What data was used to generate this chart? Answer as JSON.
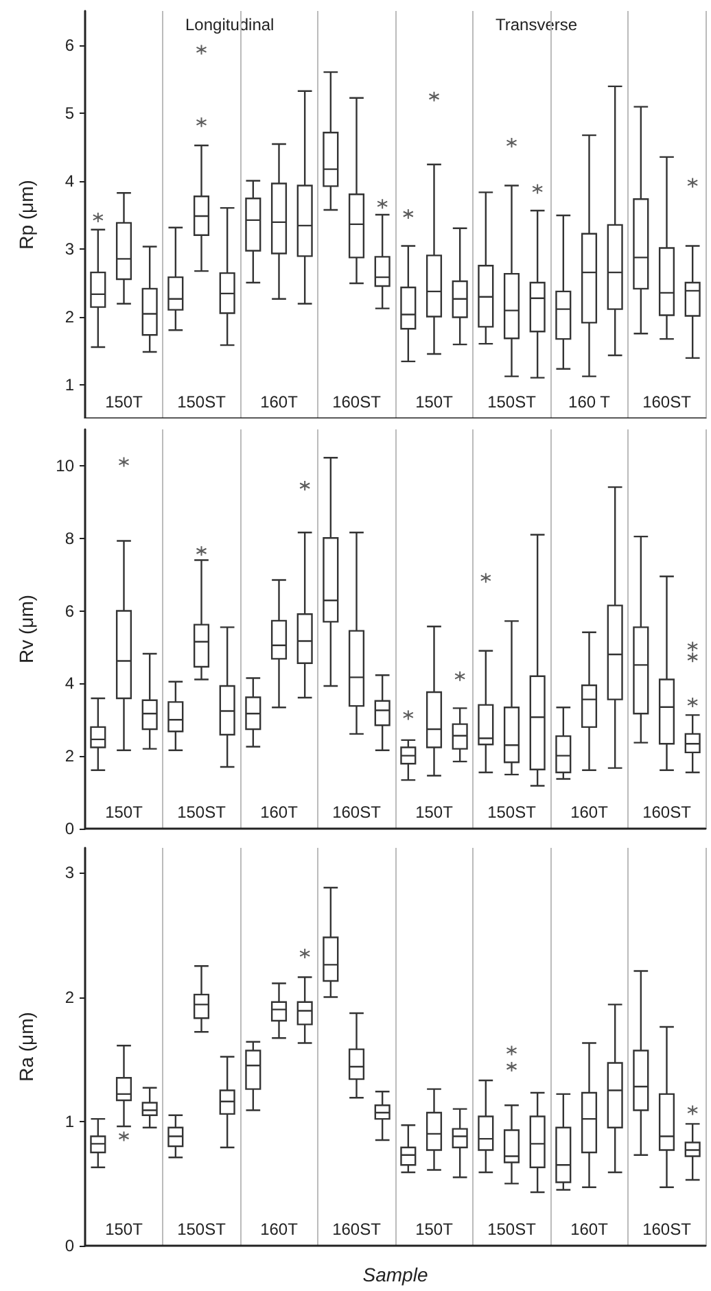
{
  "chart_data": [
    {
      "type": "box",
      "ylabel": "Rp (μm)",
      "annotations": [
        "Longitudinal",
        "Transverse"
      ],
      "grid": "x",
      "ylim": [
        0.5,
        6.5
      ],
      "yticks": [
        1,
        2,
        3,
        4,
        5,
        6
      ],
      "categories": [
        null,
        "150T",
        null,
        null,
        "150ST",
        null,
        null,
        "160T",
        null,
        null,
        "160ST",
        null,
        null,
        "150T",
        null,
        null,
        "150ST",
        null,
        null,
        "160 T",
        null,
        null,
        "160ST",
        null
      ],
      "series": [
        {
          "color": "#333333",
          "boxes": [
            {
              "low": 1.55,
              "q1": 2.14,
              "median": 2.33,
              "q3": 2.65,
              "high": 3.28,
              "outliers": [
                3.46
              ]
            },
            {
              "low": 2.19,
              "q1": 2.55,
              "median": 2.85,
              "q3": 3.38,
              "high": 3.82
            },
            {
              "low": 1.48,
              "q1": 1.73,
              "median": 2.04,
              "q3": 2.41,
              "high": 3.03
            },
            {
              "low": 1.8,
              "q1": 2.1,
              "median": 2.26,
              "q3": 2.58,
              "high": 3.31
            },
            {
              "low": 2.67,
              "q1": 3.2,
              "median": 3.48,
              "q3": 3.77,
              "high": 4.52,
              "outliers": [
                4.86,
                5.93
              ]
            },
            {
              "low": 1.58,
              "q1": 2.05,
              "median": 2.34,
              "q3": 2.64,
              "high": 3.6
            },
            {
              "low": 2.5,
              "q1": 2.97,
              "median": 3.42,
              "q3": 3.74,
              "high": 4.0
            },
            {
              "low": 2.26,
              "q1": 2.93,
              "median": 3.39,
              "q3": 3.96,
              "high": 4.54
            },
            {
              "low": 2.19,
              "q1": 2.89,
              "median": 3.34,
              "q3": 3.93,
              "high": 5.32
            },
            {
              "low": 3.57,
              "q1": 3.92,
              "median": 4.17,
              "q3": 4.71,
              "high": 5.6
            },
            {
              "low": 2.49,
              "q1": 2.87,
              "median": 3.36,
              "q3": 3.8,
              "high": 5.22
            },
            {
              "low": 2.12,
              "q1": 2.45,
              "median": 2.58,
              "q3": 2.88,
              "high": 3.5,
              "outliers": [
                3.66
              ]
            },
            {
              "low": 1.34,
              "q1": 1.82,
              "median": 2.03,
              "q3": 2.43,
              "high": 3.04,
              "outliers": [
                3.51
              ]
            },
            {
              "low": 1.45,
              "q1": 2.0,
              "median": 2.37,
              "q3": 2.9,
              "high": 4.24,
              "outliers": [
                5.24
              ]
            },
            {
              "low": 1.59,
              "q1": 1.99,
              "median": 2.26,
              "q3": 2.52,
              "high": 3.3
            },
            {
              "low": 1.6,
              "q1": 1.85,
              "median": 2.29,
              "q3": 2.75,
              "high": 3.83
            },
            {
              "low": 1.12,
              "q1": 1.68,
              "median": 2.09,
              "q3": 2.63,
              "high": 3.93,
              "outliers": [
                4.56
              ]
            },
            {
              "low": 1.1,
              "q1": 1.78,
              "median": 2.27,
              "q3": 2.5,
              "high": 3.56,
              "outliers": [
                3.88
              ]
            },
            {
              "low": 1.23,
              "q1": 1.67,
              "median": 2.11,
              "q3": 2.37,
              "high": 3.49
            },
            {
              "low": 1.12,
              "q1": 1.91,
              "median": 2.65,
              "q3": 3.22,
              "high": 4.67
            },
            {
              "low": 1.43,
              "q1": 2.11,
              "median": 2.65,
              "q3": 3.35,
              "high": 5.39
            },
            {
              "low": 1.75,
              "q1": 2.41,
              "median": 2.87,
              "q3": 3.73,
              "high": 5.09
            },
            {
              "low": 1.67,
              "q1": 2.02,
              "median": 2.35,
              "q3": 3.01,
              "high": 4.35
            },
            {
              "low": 1.39,
              "q1": 2.01,
              "median": 2.38,
              "q3": 2.5,
              "high": 3.04,
              "outliers": [
                3.97
              ]
            }
          ]
        }
      ]
    },
    {
      "type": "box",
      "ylabel": "Rv (μm)",
      "grid": "x",
      "ylim": [
        0,
        11
      ],
      "yticks": [
        0,
        2,
        4,
        6,
        8,
        10
      ],
      "categories": [
        null,
        "150T",
        null,
        null,
        "150ST",
        null,
        null,
        "160T",
        null,
        null,
        "160ST",
        null,
        null,
        "150T",
        null,
        null,
        "150ST",
        null,
        null,
        "160T",
        null,
        null,
        "160ST",
        null
      ],
      "series": [
        {
          "color": "#333333",
          "boxes": [
            {
              "low": 1.61,
              "q1": 2.24,
              "median": 2.46,
              "q3": 2.8,
              "high": 3.59
            },
            {
              "low": 2.16,
              "q1": 3.59,
              "median": 4.62,
              "q3": 6.0,
              "high": 7.93,
              "outliers": [
                10.1
              ]
            },
            {
              "low": 2.2,
              "q1": 2.74,
              "median": 3.17,
              "q3": 3.54,
              "high": 4.82
            },
            {
              "low": 2.16,
              "q1": 2.68,
              "median": 3.0,
              "q3": 3.49,
              "high": 4.05
            },
            {
              "low": 4.11,
              "q1": 4.46,
              "median": 5.15,
              "q3": 5.62,
              "high": 7.4,
              "outliers": [
                7.65
              ]
            },
            {
              "low": 1.7,
              "q1": 2.59,
              "median": 3.24,
              "q3": 3.93,
              "high": 5.55
            },
            {
              "low": 2.26,
              "q1": 2.74,
              "median": 3.17,
              "q3": 3.62,
              "high": 4.15
            },
            {
              "low": 3.34,
              "q1": 4.68,
              "median": 5.05,
              "q3": 5.73,
              "high": 6.85
            },
            {
              "low": 3.61,
              "q1": 4.56,
              "median": 5.17,
              "q3": 5.91,
              "high": 8.16,
              "outliers": [
                9.45
              ]
            },
            {
              "low": 3.93,
              "q1": 5.7,
              "median": 6.29,
              "q3": 8.01,
              "high": 10.22
            },
            {
              "low": 2.61,
              "q1": 3.38,
              "median": 4.17,
              "q3": 5.45,
              "high": 8.16
            },
            {
              "low": 2.16,
              "q1": 2.85,
              "median": 3.26,
              "q3": 3.52,
              "high": 4.23
            },
            {
              "low": 1.34,
              "q1": 1.79,
              "median": 2.01,
              "q3": 2.24,
              "high": 2.44,
              "outliers": [
                3.13
              ]
            },
            {
              "low": 1.46,
              "q1": 2.24,
              "median": 2.74,
              "q3": 3.76,
              "high": 5.57
            },
            {
              "low": 1.85,
              "q1": 2.2,
              "median": 2.56,
              "q3": 2.88,
              "high": 3.32,
              "outliers": [
                4.2
              ]
            },
            {
              "low": 1.55,
              "q1": 2.32,
              "median": 2.49,
              "q3": 3.41,
              "high": 4.9,
              "outliers": [
                6.91
              ]
            },
            {
              "low": 1.49,
              "q1": 1.83,
              "median": 2.3,
              "q3": 3.34,
              "high": 5.72
            },
            {
              "low": 1.18,
              "q1": 1.63,
              "median": 3.07,
              "q3": 4.2,
              "high": 8.1
            },
            {
              "low": 1.37,
              "q1": 1.55,
              "median": 2.01,
              "q3": 2.55,
              "high": 3.34
            },
            {
              "low": 1.61,
              "q1": 2.8,
              "median": 3.56,
              "q3": 3.95,
              "high": 5.41
            },
            {
              "low": 1.67,
              "q1": 3.56,
              "median": 4.8,
              "q3": 6.15,
              "high": 9.41
            },
            {
              "low": 2.37,
              "q1": 3.17,
              "median": 4.51,
              "q3": 5.55,
              "high": 8.05
            },
            {
              "low": 1.61,
              "q1": 2.34,
              "median": 3.35,
              "q3": 4.11,
              "high": 6.95
            },
            {
              "low": 1.55,
              "q1": 2.1,
              "median": 2.34,
              "q3": 2.61,
              "high": 3.13,
              "outliers": [
                3.48,
                4.72,
                5.02
              ]
            }
          ]
        }
      ]
    },
    {
      "type": "box",
      "ylabel": "Ra (μm)",
      "xlabel": "Sample",
      "grid": "x",
      "ylim": [
        0,
        3.2
      ],
      "yticks": [
        0,
        1,
        2,
        3
      ],
      "categories": [
        null,
        "150T",
        null,
        null,
        "150ST",
        null,
        null,
        "160T",
        null,
        null,
        "160ST",
        null,
        null,
        "150T",
        null,
        null,
        "150ST",
        null,
        null,
        "160T",
        null,
        null,
        "160ST",
        null
      ],
      "series": [
        {
          "color": "#333333",
          "boxes": [
            {
              "low": 0.63,
              "q1": 0.75,
              "median": 0.82,
              "q3": 0.88,
              "high": 1.02
            },
            {
              "low": 0.96,
              "q1": 1.17,
              "median": 1.22,
              "q3": 1.35,
              "high": 1.61,
              "outliers": [
                0.88
              ]
            },
            {
              "low": 0.95,
              "q1": 1.05,
              "median": 1.09,
              "q3": 1.15,
              "high": 1.27
            },
            {
              "low": 0.71,
              "q1": 0.8,
              "median": 0.88,
              "q3": 0.95,
              "high": 1.05
            },
            {
              "low": 1.72,
              "q1": 1.83,
              "median": 1.94,
              "q3": 2.02,
              "high": 2.25
            },
            {
              "low": 0.79,
              "q1": 1.06,
              "median": 1.16,
              "q3": 1.25,
              "high": 1.52
            },
            {
              "low": 1.09,
              "q1": 1.26,
              "median": 1.45,
              "q3": 1.57,
              "high": 1.64
            },
            {
              "low": 1.67,
              "q1": 1.81,
              "median": 1.9,
              "q3": 1.96,
              "high": 2.11
            },
            {
              "low": 1.63,
              "q1": 1.78,
              "median": 1.89,
              "q3": 1.96,
              "high": 2.16,
              "outliers": [
                2.35
              ]
            },
            {
              "low": 2.0,
              "q1": 2.13,
              "median": 2.26,
              "q3": 2.48,
              "high": 2.88
            },
            {
              "low": 1.19,
              "q1": 1.34,
              "median": 1.44,
              "q3": 1.58,
              "high": 1.87
            },
            {
              "low": 0.85,
              "q1": 1.02,
              "median": 1.07,
              "q3": 1.13,
              "high": 1.24
            },
            {
              "low": 0.59,
              "q1": 0.65,
              "median": 0.73,
              "q3": 0.79,
              "high": 0.97
            },
            {
              "low": 0.61,
              "q1": 0.77,
              "median": 0.9,
              "q3": 1.07,
              "high": 1.26
            },
            {
              "low": 0.55,
              "q1": 0.79,
              "median": 0.88,
              "q3": 0.94,
              "high": 1.1
            },
            {
              "low": 0.59,
              "q1": 0.77,
              "median": 0.86,
              "q3": 1.04,
              "high": 1.33
            },
            {
              "low": 0.5,
              "q1": 0.67,
              "median": 0.72,
              "q3": 0.93,
              "high": 1.13,
              "outliers": [
                1.44,
                1.57
              ]
            },
            {
              "low": 0.43,
              "q1": 0.63,
              "median": 0.82,
              "q3": 1.04,
              "high": 1.23
            },
            {
              "low": 0.45,
              "q1": 0.51,
              "median": 0.65,
              "q3": 0.95,
              "high": 1.22
            },
            {
              "low": 0.47,
              "q1": 0.75,
              "median": 1.02,
              "q3": 1.23,
              "high": 1.63
            },
            {
              "low": 0.59,
              "q1": 0.95,
              "median": 1.25,
              "q3": 1.47,
              "high": 1.94
            },
            {
              "low": 0.73,
              "q1": 1.09,
              "median": 1.28,
              "q3": 1.57,
              "high": 2.21
            },
            {
              "low": 0.47,
              "q1": 0.77,
              "median": 0.88,
              "q3": 1.22,
              "high": 1.76
            },
            {
              "low": 0.53,
              "q1": 0.72,
              "median": 0.77,
              "q3": 0.83,
              "high": 0.98,
              "outliers": [
                1.09
              ]
            }
          ]
        }
      ]
    }
  ]
}
